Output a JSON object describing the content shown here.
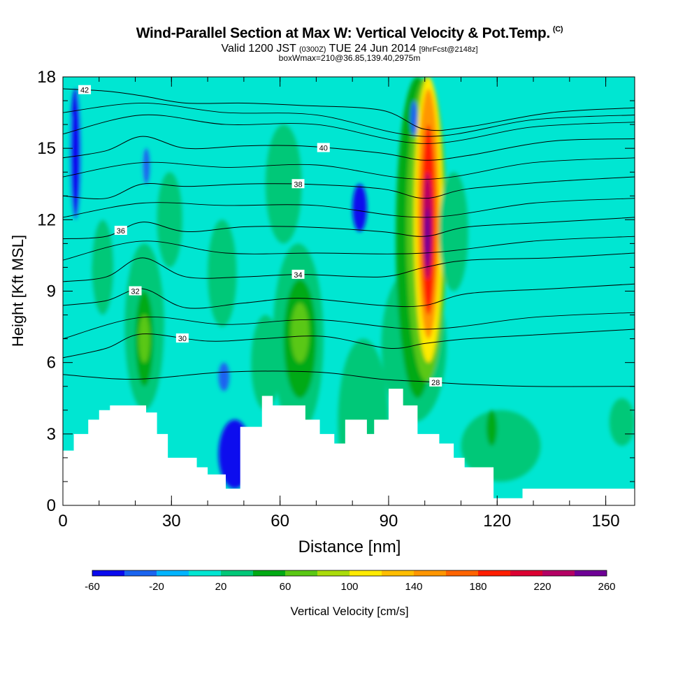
{
  "header": {
    "title": "Wind-Parallel Section at Max W: Vertical Velocity & Pot.Temp.",
    "title_mark": "(C)",
    "valid_prefix": "Valid 1200 JST",
    "valid_utc": "(0300Z)",
    "valid_date": "TUE 24 Jun 2014",
    "forecast_info": "[9hrFcst@2148z]",
    "box_info": "boxWmax=210@36.85,139.40,2975m"
  },
  "chart_data": {
    "type": "contour-cross-section",
    "xlabel": "Distance [nm]",
    "ylabel": "Height [Kft MSL]",
    "xlim": [
      0,
      158
    ],
    "ylim": [
      0,
      18
    ],
    "x_ticks": [
      0,
      30,
      60,
      90,
      120,
      150
    ],
    "y_ticks": [
      0,
      3,
      6,
      9,
      12,
      15,
      18
    ],
    "colorbar": {
      "label": "Vertical Velocity [cm/s]",
      "levels": [
        -60,
        -40,
        -20,
        0,
        20,
        40,
        60,
        80,
        100,
        120,
        140,
        160,
        180,
        200,
        220,
        240,
        260
      ],
      "tick_labels": [
        "-60",
        "-20",
        "20",
        "60",
        "100",
        "140",
        "180",
        "220",
        "260"
      ],
      "colors": [
        "#0a0aee",
        "#1a64f0",
        "#00b4ff",
        "#00e6d2",
        "#00c878",
        "#00aa14",
        "#5ac814",
        "#aadc0a",
        "#ffeb00",
        "#ffbe00",
        "#ff9600",
        "#ff6400",
        "#ff1e00",
        "#dc0032",
        "#b40064",
        "#6e0096"
      ]
    },
    "background_velocity": 5,
    "velocity_cells": [
      {
        "x": [
          0,
          30
        ],
        "y": [
          0,
          10
        ],
        "v": 15
      },
      {
        "x": [
          0,
          22
        ],
        "y": [
          10,
          18
        ],
        "v": 5
      },
      {
        "x": [
          8,
          14
        ],
        "y": [
          8,
          12
        ],
        "v": 25
      },
      {
        "x": [
          17,
          28
        ],
        "y": [
          4,
          11
        ],
        "v": 25
      },
      {
        "x": [
          20,
          25
        ],
        "y": [
          5,
          9
        ],
        "v": 50
      },
      {
        "x": [
          21,
          24
        ],
        "y": [
          6,
          8
        ],
        "v": 65
      },
      {
        "x": [
          26,
          33
        ],
        "y": [
          10,
          14
        ],
        "v": 25
      },
      {
        "x": [
          2,
          5
        ],
        "y": [
          12,
          17.5
        ],
        "v": -45
      },
      {
        "x": [
          22,
          24
        ],
        "y": [
          13.5,
          15
        ],
        "v": -35
      },
      {
        "x": [
          40,
          48
        ],
        "y": [
          7.5,
          12
        ],
        "v": 25
      },
      {
        "x": [
          43,
          52
        ],
        "y": [
          0.7,
          3.6
        ],
        "v": -45
      },
      {
        "x": [
          43,
          46
        ],
        "y": [
          4.8,
          6
        ],
        "v": -35
      },
      {
        "x": [
          52,
          60
        ],
        "y": [
          4,
          8
        ],
        "v": 25
      },
      {
        "x": [
          58,
          72
        ],
        "y": [
          3,
          11
        ],
        "v": 25
      },
      {
        "x": [
          61,
          70
        ],
        "y": [
          4.5,
          9.5
        ],
        "v": 45
      },
      {
        "x": [
          63,
          68
        ],
        "y": [
          6,
          8.5
        ],
        "v": 60
      },
      {
        "x": [
          56,
          66
        ],
        "y": [
          11,
          16
        ],
        "v": 25
      },
      {
        "x": [
          80,
          84
        ],
        "y": [
          11.5,
          13.5
        ],
        "v": -45
      },
      {
        "x": [
          76,
          90
        ],
        "y": [
          0,
          7
        ],
        "v": 25
      },
      {
        "x": [
          88,
          106
        ],
        "y": [
          3.5,
          10
        ],
        "v": 25
      },
      {
        "x": [
          92,
          104
        ],
        "y": [
          4.5,
          18
        ],
        "v": 40
      },
      {
        "x": [
          95,
          106
        ],
        "y": [
          5.2,
          18
        ],
        "v": 70
      },
      {
        "x": [
          97,
          105
        ],
        "y": [
          6,
          18
        ],
        "v": 110
      },
      {
        "x": [
          98,
          104
        ],
        "y": [
          7,
          17.5
        ],
        "v": 145
      },
      {
        "x": [
          99,
          103
        ],
        "y": [
          8,
          16
        ],
        "v": 185
      },
      {
        "x": [
          99.5,
          102
        ],
        "y": [
          9.5,
          14
        ],
        "v": 225
      },
      {
        "x": [
          100,
          101.5
        ],
        "y": [
          10,
          12.5
        ],
        "v": 255
      },
      {
        "x": [
          104,
          112
        ],
        "y": [
          9,
          14
        ],
        "v": 25
      },
      {
        "x": [
          96,
          98
        ],
        "y": [
          15.5,
          17
        ],
        "v": -35
      },
      {
        "x": [
          120,
          158
        ],
        "y": [
          8,
          18
        ],
        "v": 5
      },
      {
        "x": [
          110,
          132
        ],
        "y": [
          1,
          4
        ],
        "v": 25
      },
      {
        "x": [
          117,
          120
        ],
        "y": [
          2.5,
          4
        ],
        "v": 45
      },
      {
        "x": [
          134,
          147
        ],
        "y": [
          0.7,
          4
        ],
        "v": 5
      },
      {
        "x": [
          151,
          158
        ],
        "y": [
          2.5,
          4.5
        ],
        "v": 25
      }
    ],
    "terrain": {
      "x": [
        0,
        3,
        3,
        7,
        7,
        10,
        10,
        13,
        13,
        23,
        23,
        26,
        26,
        29,
        29,
        37,
        37,
        40,
        40,
        45,
        45,
        49,
        49,
        55,
        55,
        58,
        58,
        67,
        67,
        71,
        71,
        75,
        75,
        78,
        78,
        84,
        84,
        86,
        86,
        90,
        90,
        94,
        94,
        98,
        98,
        104,
        104,
        108,
        108,
        111,
        111,
        119,
        119,
        124,
        124,
        127,
        127,
        136,
        136,
        158
      ],
      "height": [
        2.3,
        2.3,
        3.0,
        3.0,
        3.6,
        3.6,
        4.0,
        4.0,
        4.2,
        4.2,
        3.9,
        3.9,
        3.0,
        3.0,
        2.0,
        2.0,
        1.6,
        1.6,
        1.3,
        1.3,
        0.7,
        0.7,
        3.3,
        3.3,
        4.6,
        4.6,
        4.2,
        4.2,
        3.6,
        3.6,
        3.0,
        3.0,
        2.6,
        2.6,
        3.6,
        3.6,
        3.0,
        3.0,
        3.6,
        3.6,
        4.9,
        4.9,
        4.2,
        4.2,
        3.0,
        3.0,
        2.6,
        2.6,
        2.0,
        2.0,
        1.6,
        1.6,
        0.3,
        0.3,
        0.3,
        0.3,
        0.7,
        0.7,
        0.7,
        0.7
      ]
    },
    "theta_contours": [
      {
        "value": 28,
        "label": "28",
        "label_x": 103,
        "points": [
          [
            0,
            5.5
          ],
          [
            20,
            5.3
          ],
          [
            45,
            5.6
          ],
          [
            70,
            5.6
          ],
          [
            88,
            5.3
          ],
          [
            100,
            5.2
          ],
          [
            110,
            5.1
          ],
          [
            130,
            5.0
          ],
          [
            158,
            5.0
          ]
        ]
      },
      {
        "value": 30,
        "label": "30",
        "label_x": 33,
        "points": [
          [
            0,
            6.2
          ],
          [
            12,
            6.6
          ],
          [
            22,
            7.2
          ],
          [
            40,
            6.9
          ],
          [
            55,
            7.0
          ],
          [
            72,
            7.1
          ],
          [
            90,
            6.6
          ],
          [
            100,
            6.8
          ],
          [
            112,
            7.0
          ],
          [
            135,
            7.2
          ],
          [
            158,
            7.4
          ]
        ]
      },
      {
        "value": 32,
        "label": "32",
        "label_x": 20,
        "points": [
          [
            0,
            8.4
          ],
          [
            12,
            8.6
          ],
          [
            22,
            9.1
          ],
          [
            34,
            8.3
          ],
          [
            50,
            8.5
          ],
          [
            66,
            8.7
          ],
          [
            88,
            8.4
          ],
          [
            100,
            8.4
          ],
          [
            112,
            8.9
          ],
          [
            135,
            9.1
          ],
          [
            158,
            9.3
          ]
        ]
      },
      {
        "value": 34,
        "label": "34",
        "label_x": 65,
        "points": [
          [
            0,
            9.4
          ],
          [
            12,
            9.6
          ],
          [
            22,
            10.4
          ],
          [
            34,
            9.6
          ],
          [
            50,
            9.6
          ],
          [
            66,
            9.7
          ],
          [
            88,
            9.6
          ],
          [
            100,
            10.0
          ],
          [
            112,
            10.3
          ],
          [
            135,
            10.4
          ],
          [
            158,
            10.6
          ]
        ]
      },
      {
        "value": 36,
        "label": "36",
        "label_x": 16,
        "points": [
          [
            0,
            11.2
          ],
          [
            12,
            11.3
          ],
          [
            22,
            11.9
          ],
          [
            34,
            11.5
          ],
          [
            50,
            11.7
          ],
          [
            66,
            11.7
          ],
          [
            88,
            11.5
          ],
          [
            100,
            11.3
          ],
          [
            112,
            11.7
          ],
          [
            135,
            11.9
          ],
          [
            158,
            12.1
          ]
        ]
      },
      {
        "value": 38,
        "label": "38",
        "label_x": 65,
        "points": [
          [
            0,
            13.0
          ],
          [
            12,
            12.9
          ],
          [
            22,
            13.5
          ],
          [
            34,
            13.4
          ],
          [
            50,
            13.5
          ],
          [
            66,
            13.5
          ],
          [
            88,
            13.3
          ],
          [
            100,
            12.9
          ],
          [
            112,
            13.3
          ],
          [
            135,
            13.6
          ],
          [
            158,
            13.8
          ]
        ]
      },
      {
        "value": 40,
        "label": "40",
        "label_x": 72,
        "points": [
          [
            0,
            14.6
          ],
          [
            12,
            14.9
          ],
          [
            22,
            15.5
          ],
          [
            34,
            15.0
          ],
          [
            50,
            15.1
          ],
          [
            66,
            15.1
          ],
          [
            88,
            14.8
          ],
          [
            100,
            14.5
          ],
          [
            112,
            14.7
          ],
          [
            135,
            15.3
          ],
          [
            158,
            15.4
          ]
        ]
      },
      {
        "value": 42,
        "label": "42",
        "label_x": 6,
        "points": [
          [
            0,
            17.5
          ],
          [
            12,
            17.4
          ],
          [
            22,
            17.2
          ],
          [
            34,
            16.9
          ],
          [
            50,
            16.9
          ],
          [
            66,
            16.8
          ],
          [
            88,
            16.6
          ],
          [
            100,
            15.8
          ],
          [
            112,
            15.9
          ],
          [
            135,
            16.5
          ],
          [
            158,
            16.7
          ]
        ]
      }
    ],
    "theta_minor": [
      [
        [
          0,
          7.0
        ],
        [
          22,
          7.9
        ],
        [
          45,
          7.6
        ],
        [
          70,
          7.8
        ],
        [
          100,
          7.4
        ],
        [
          130,
          7.9
        ],
        [
          158,
          8.1
        ]
      ],
      [
        [
          0,
          10.3
        ],
        [
          22,
          11.1
        ],
        [
          45,
          10.6
        ],
        [
          70,
          10.6
        ],
        [
          100,
          10.6
        ],
        [
          130,
          11.1
        ],
        [
          158,
          11.3
        ]
      ],
      [
        [
          0,
          12.1
        ],
        [
          22,
          12.7
        ],
        [
          45,
          12.6
        ],
        [
          70,
          12.6
        ],
        [
          100,
          12.1
        ],
        [
          130,
          12.7
        ],
        [
          158,
          12.9
        ]
      ],
      [
        [
          0,
          13.8
        ],
        [
          22,
          14.4
        ],
        [
          45,
          14.2
        ],
        [
          70,
          14.3
        ],
        [
          100,
          13.7
        ],
        [
          130,
          14.4
        ],
        [
          158,
          14.6
        ]
      ],
      [
        [
          0,
          15.6
        ],
        [
          22,
          16.4
        ],
        [
          45,
          16.0
        ],
        [
          70,
          16.0
        ],
        [
          100,
          15.2
        ],
        [
          130,
          15.9
        ],
        [
          158,
          16.1
        ]
      ],
      [
        [
          0,
          16.5
        ],
        [
          22,
          16.9
        ],
        [
          45,
          16.5
        ],
        [
          70,
          16.4
        ],
        [
          100,
          15.5
        ],
        [
          130,
          16.2
        ],
        [
          158,
          16.4
        ]
      ]
    ]
  }
}
